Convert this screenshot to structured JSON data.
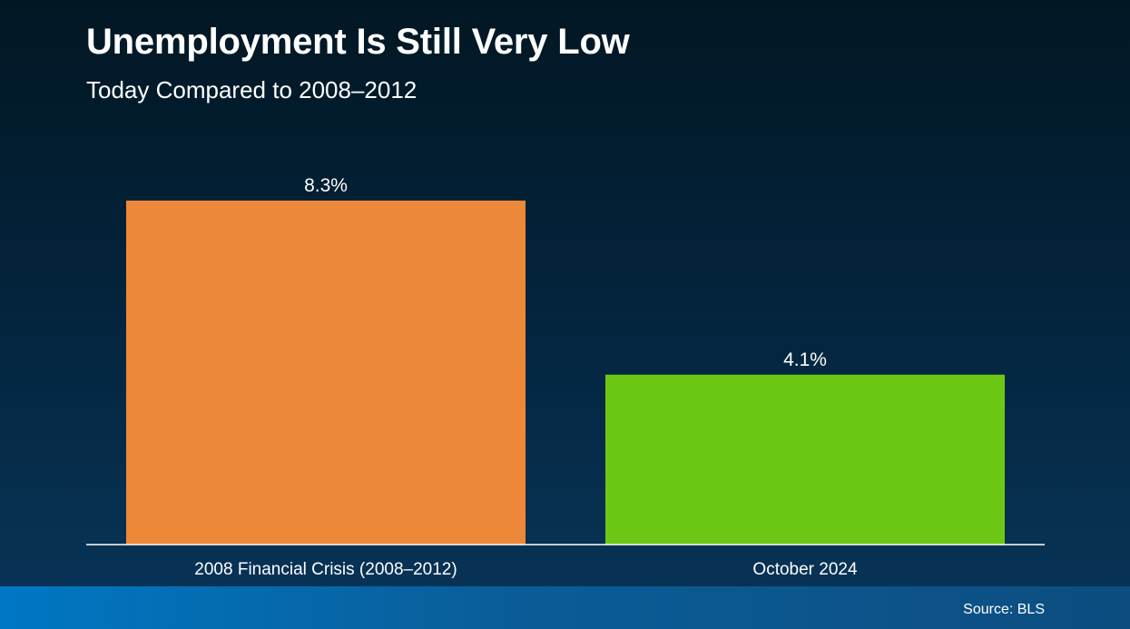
{
  "title": "Unemployment Is Still Very Low",
  "subtitle": "Today Compared to 2008–2012",
  "source": "Source: BLS",
  "chart_data": {
    "type": "bar",
    "title": "Unemployment Is Still Very Low",
    "subtitle": "Today Compared to 2008–2012",
    "categories": [
      "2008 Financial Crisis (2008–2012)",
      "October 2024"
    ],
    "values": [
      8.3,
      4.1
    ],
    "data_labels": [
      "8.3%",
      "4.1%"
    ],
    "colors": [
      "#ec8838",
      "#6cc814"
    ],
    "unit": "%",
    "ylim": [
      0,
      8.3
    ],
    "grid": false,
    "legend": "none",
    "xlabel": "",
    "ylabel": ""
  }
}
